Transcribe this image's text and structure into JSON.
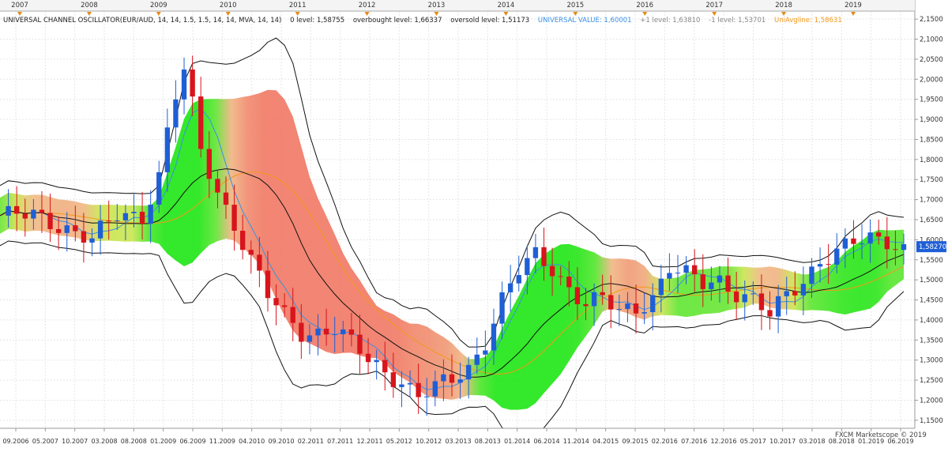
{
  "header": {
    "indicator": "UNIVERSAL CHANNEL OSCILLATOR(EUR/AUD, 14, 14, 1.5, 1.5, 14, 14, MVA, 14, 14)",
    "zero_level": "0 level: 1,58755",
    "overbought": "overbought level: 1,66337",
    "oversold": "oversold level: 1,51173",
    "universal_value": "UNIVERSAL VALUE: 1,60001",
    "plus1": "+1 level: 1,63810",
    "minus1": "-1 level: 1,53701",
    "uniavgline": "UniAvgline: 1,58631"
  },
  "watermark": "FXCM Marketscope © 2019",
  "price_badge": "1,58270",
  "colors": {
    "bull": "#1f5fd6",
    "bear": "#d8141c",
    "universal": "#3b8fe6",
    "uniavg": "#f29a1a",
    "channel": "#111111",
    "year_marker": "#e58a16"
  },
  "chart_data": {
    "type": "candlestick",
    "symbol": "EUR/AUD",
    "y_axis": {
      "min": 1.13,
      "max": 2.17,
      "ticks": [
        "2,1500",
        "2,1000",
        "2,0500",
        "2,0000",
        "1,9500",
        "1,9000",
        "1,8500",
        "1,8000",
        "1,7500",
        "1,7000",
        "1,6500",
        "1,6000",
        "1,5500",
        "1,5000",
        "1,4500",
        "1,4000",
        "1,3500",
        "1,3000",
        "1,2500",
        "1,2000",
        "1,1500"
      ]
    },
    "top_years": [
      "2007",
      "2008",
      "2009",
      "2010",
      "2011",
      "2012",
      "2013",
      "2014",
      "2015",
      "2016",
      "2017",
      "2018",
      "2019"
    ],
    "bottom_dates": [
      "09.2006",
      "05.2007",
      "10.2007",
      "03.2008",
      "08.2008",
      "01.2009",
      "06.2009",
      "11.2009",
      "04.2010",
      "09.2010",
      "02.2011",
      "07.2011",
      "12.2011",
      "05.2012",
      "10.2012",
      "03.2013",
      "08.2013",
      "01.2014",
      "06.2014",
      "11.2014",
      "04.2015",
      "09.2015",
      "02.2016",
      "07.2016",
      "12.2016",
      "05.2017",
      "10.2017",
      "03.2018",
      "08.2018",
      "01.2019",
      "06.2019"
    ],
    "last_price": 1.5827,
    "zero_level": 1.58755,
    "overbought_level": 1.66337,
    "oversold_level": 1.51173,
    "universal_value": 1.60001,
    "plus1_level": 1.6381,
    "minus1_level": 1.53701,
    "uniavgline": 1.58631,
    "close_path": [
      {
        "t": 0,
        "c": 1.66
      },
      {
        "t": 4,
        "c": 1.66
      },
      {
        "t": 8,
        "c": 1.63
      },
      {
        "t": 11,
        "c": 1.6
      },
      {
        "t": 14,
        "c": 1.66
      },
      {
        "t": 17,
        "c": 1.66
      },
      {
        "t": 19,
        "c": 1.76
      },
      {
        "t": 20,
        "c": 1.87
      },
      {
        "t": 21,
        "c": 1.96
      },
      {
        "t": 22,
        "c": 2.02
      },
      {
        "t": 23,
        "c": 1.93
      },
      {
        "t": 24,
        "c": 1.82
      },
      {
        "t": 26,
        "c": 1.72
      },
      {
        "t": 28,
        "c": 1.64
      },
      {
        "t": 30,
        "c": 1.55
      },
      {
        "t": 32,
        "c": 1.46
      },
      {
        "t": 34,
        "c": 1.41
      },
      {
        "t": 36,
        "c": 1.37
      },
      {
        "t": 38,
        "c": 1.37
      },
      {
        "t": 40,
        "c": 1.38
      },
      {
        "t": 42,
        "c": 1.34
      },
      {
        "t": 44,
        "c": 1.3
      },
      {
        "t": 46,
        "c": 1.27
      },
      {
        "t": 48,
        "c": 1.25
      },
      {
        "t": 50,
        "c": 1.21
      },
      {
        "t": 52,
        "c": 1.23
      },
      {
        "t": 54,
        "c": 1.25
      },
      {
        "t": 56,
        "c": 1.28
      },
      {
        "t": 58,
        "c": 1.35
      },
      {
        "t": 60,
        "c": 1.45
      },
      {
        "t": 62,
        "c": 1.52
      },
      {
        "t": 64,
        "c": 1.56
      },
      {
        "t": 66,
        "c": 1.53
      },
      {
        "t": 68,
        "c": 1.48
      },
      {
        "t": 70,
        "c": 1.44
      },
      {
        "t": 72,
        "c": 1.45
      },
      {
        "t": 74,
        "c": 1.42
      },
      {
        "t": 76,
        "c": 1.43
      },
      {
        "t": 78,
        "c": 1.46
      },
      {
        "t": 80,
        "c": 1.53
      },
      {
        "t": 82,
        "c": 1.51
      },
      {
        "t": 84,
        "c": 1.49
      },
      {
        "t": 86,
        "c": 1.5
      },
      {
        "t": 88,
        "c": 1.47
      },
      {
        "t": 90,
        "c": 1.45
      },
      {
        "t": 92,
        "c": 1.41
      },
      {
        "t": 94,
        "c": 1.46
      },
      {
        "t": 96,
        "c": 1.5
      },
      {
        "t": 98,
        "c": 1.55
      },
      {
        "t": 100,
        "c": 1.57
      },
      {
        "t": 102,
        "c": 1.59
      },
      {
        "t": 104,
        "c": 1.6
      },
      {
        "t": 106,
        "c": 1.6
      },
      {
        "t": 108,
        "c": 1.58
      }
    ]
  }
}
